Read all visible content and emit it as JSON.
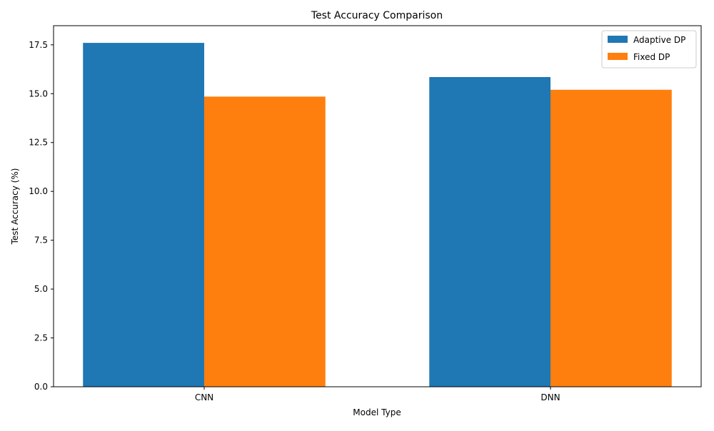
{
  "chart_data": {
    "type": "bar",
    "title": "Test Accuracy Comparison",
    "xlabel": "Model Type",
    "ylabel": "Test Accuracy (%)",
    "categories": [
      "CNN",
      "DNN"
    ],
    "series": [
      {
        "name": "Adaptive DP",
        "values": [
          17.6,
          15.85
        ],
        "color": "#1f77b4"
      },
      {
        "name": "Fixed DP",
        "values": [
          14.85,
          15.2
        ],
        "color": "#ff7f0e"
      }
    ],
    "ylim": [
      0,
      18.48
    ],
    "yticks": [
      0.0,
      2.5,
      5.0,
      7.5,
      10.0,
      12.5,
      15.0,
      17.5
    ],
    "ytick_labels": [
      "0.0",
      "2.5",
      "5.0",
      "7.5",
      "10.0",
      "12.5",
      "15.0",
      "17.5"
    ],
    "legend": "top-right",
    "grid": false
  }
}
